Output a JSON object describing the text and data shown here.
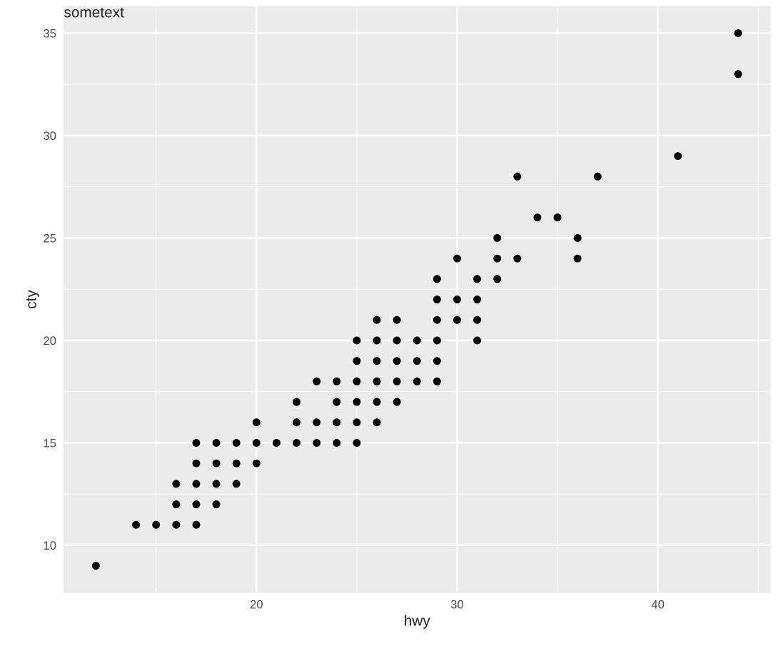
{
  "chart_data": {
    "type": "scatter",
    "xlabel": "hwy",
    "ylabel": "cty",
    "annotations": [
      "sometext"
    ],
    "x": [
      12,
      14,
      15,
      16,
      16,
      16,
      17,
      17,
      17,
      17,
      17,
      18,
      18,
      18,
      18,
      19,
      19,
      19,
      20,
      20,
      20,
      21,
      22,
      22,
      22,
      23,
      23,
      23,
      24,
      24,
      24,
      24,
      25,
      25,
      25,
      25,
      25,
      25,
      26,
      26,
      26,
      26,
      26,
      26,
      27,
      27,
      27,
      27,
      27,
      28,
      28,
      28,
      29,
      29,
      29,
      29,
      29,
      29,
      30,
      30,
      30,
      31,
      31,
      31,
      31,
      32,
      32,
      32,
      33,
      33,
      34,
      35,
      36,
      36,
      37,
      41,
      44,
      44
    ],
    "series": [
      {
        "color": "#000000",
        "values": [
          9,
          11,
          11,
          11,
          12,
          13,
          11,
          12,
          13,
          14,
          15,
          12,
          13,
          14,
          15,
          13,
          14,
          15,
          14,
          15,
          16,
          15,
          15,
          16,
          17,
          15,
          16,
          18,
          15,
          16,
          17,
          18,
          15,
          16,
          17,
          18,
          19,
          20,
          16,
          17,
          18,
          19,
          20,
          21,
          17,
          18,
          19,
          20,
          21,
          18,
          19,
          20,
          18,
          19,
          20,
          21,
          22,
          23,
          21,
          22,
          24,
          20,
          21,
          22,
          23,
          23,
          24,
          25,
          24,
          28,
          26,
          26,
          24,
          25,
          28,
          29,
          33,
          35
        ]
      }
    ],
    "xlim": [
      10.4,
      45.6
    ],
    "ylim": [
      7.7,
      36.3
    ],
    "xticks": [
      20,
      30,
      40
    ],
    "yticks": [
      10,
      15,
      20,
      25,
      30,
      35
    ],
    "grid": true,
    "marker": "circle"
  }
}
